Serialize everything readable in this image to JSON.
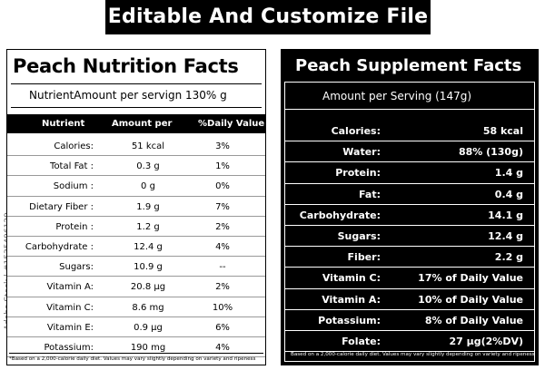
{
  "banner": {
    "title": "Editable And Customize File"
  },
  "watermark": {
    "side_text": "Adobe Stock | #1535496129"
  },
  "left": {
    "title": "Peach Nutrition Facts",
    "subtitle": "NutrientAmount per servign 130% g",
    "columns": [
      "Nutrient",
      "Amount per",
      "%Daily Value"
    ],
    "rows": [
      {
        "nutrient": "Calories:",
        "amount": "51 kcal",
        "dv": "3%"
      },
      {
        "nutrient": "Total Fat :",
        "amount": "0.3 g",
        "dv": "1%"
      },
      {
        "nutrient": "Sodium :",
        "amount": "0 g",
        "dv": "0%"
      },
      {
        "nutrient": "Dietary Fiber :",
        "amount": "1.9 g",
        "dv": "7%"
      },
      {
        "nutrient": "Protein :",
        "amount": "1.2 g",
        "dv": "2%"
      },
      {
        "nutrient": "Carbohydrate :",
        "amount": "12.4 g",
        "dv": "4%"
      },
      {
        "nutrient": "Sugars:",
        "amount": "10.9 g",
        "dv": "--"
      },
      {
        "nutrient": "Vitamin A:",
        "amount": "20.8 µg",
        "dv": "2%"
      },
      {
        "nutrient": "Vitamin C:",
        "amount": "8.6 mg",
        "dv": "10%"
      },
      {
        "nutrient": "Vitamin E:",
        "amount": "0.9 µg",
        "dv": "6%"
      },
      {
        "nutrient": "Potassium:",
        "amount": "190 mg",
        "dv": "4%"
      }
    ],
    "footnote": "*Based on a 2,000-calorie daily diet. Values may vary slightly depending on variety and ripeness"
  },
  "right": {
    "title": "Peach Supplement Facts",
    "subtitle": "Amount per Serving (147g)",
    "rows": [
      {
        "nutrient": "Calories:",
        "value": "58 kcal"
      },
      {
        "nutrient": "Water:",
        "value": "88% (130g)"
      },
      {
        "nutrient": "Protein:",
        "value": "1.4 g"
      },
      {
        "nutrient": "Fat:",
        "value": "0.4 g"
      },
      {
        "nutrient": "Carbohydrate:",
        "value": "14.1 g"
      },
      {
        "nutrient": "Sugars:",
        "value": "12.4 g"
      },
      {
        "nutrient": "Fiber:",
        "value": "2.2 g"
      },
      {
        "nutrient": "Vitamin C:",
        "value": "17% of Daily Value"
      },
      {
        "nutrient": "Vitamin A:",
        "value": "10% of Daily Value"
      },
      {
        "nutrient": "Potassium:",
        "value": "8% of Daily Value"
      },
      {
        "nutrient": "Folate:",
        "value": "27 µg(2%DV)"
      }
    ],
    "footnote": "Based on a 2,000-calorie daily diet. Values may vary slightly depending on variety and ripeness"
  }
}
